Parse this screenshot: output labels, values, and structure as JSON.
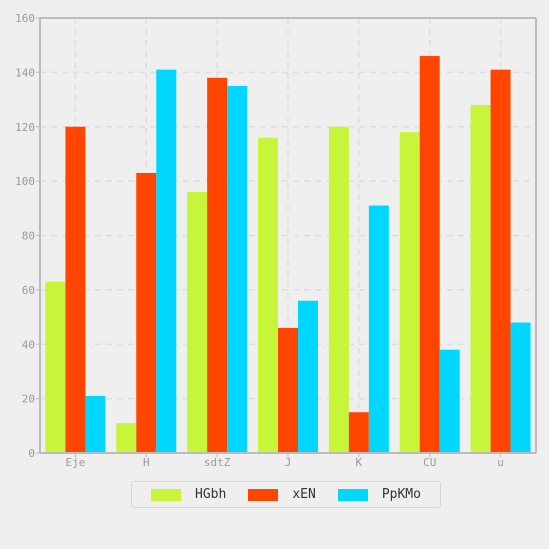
{
  "chart_data": {
    "type": "bar",
    "categories": [
      "Eje",
      "H",
      "sdtZ",
      "J",
      "K",
      "CU",
      "u"
    ],
    "series": [
      {
        "name": "HGbh",
        "color": "#c7f53a",
        "values": [
          63,
          11,
          96,
          116,
          120,
          118,
          128
        ]
      },
      {
        "name": "xEN",
        "color": "#ff4500",
        "values": [
          120,
          103,
          138,
          46,
          15,
          146,
          141
        ]
      },
      {
        "name": "PpKMo",
        "color": "#00d7ff",
        "values": [
          21,
          141,
          135,
          56,
          91,
          38,
          48
        ]
      }
    ],
    "ylim": [
      0,
      160
    ],
    "yticks": [
      0,
      20,
      40,
      60,
      80,
      100,
      120,
      140,
      160
    ],
    "grid": true,
    "legend_position": "bottom",
    "title": "",
    "xlabel": "",
    "ylabel": ""
  }
}
